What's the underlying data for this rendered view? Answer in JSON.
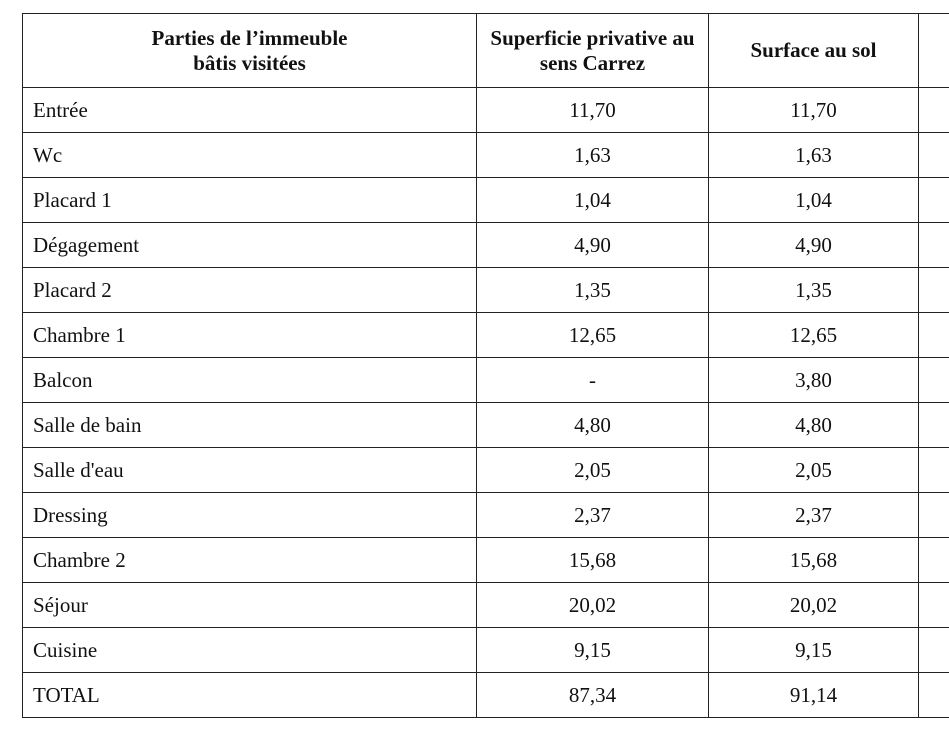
{
  "table": {
    "header": [
      "Parties de l’immeuble bâtis visitées",
      "Superficie privative au sens Carrez",
      "Surface au sol"
    ],
    "rows": [
      [
        "Entrée",
        "11,70",
        "11,70"
      ],
      [
        "Wc",
        "1,63",
        "1,63"
      ],
      [
        "Placard 1",
        "1,04",
        "1,04"
      ],
      [
        "Dégagement",
        "4,90",
        "4,90"
      ],
      [
        "Placard 2",
        "1,35",
        "1,35"
      ],
      [
        "Chambre 1",
        "12,65",
        "12,65"
      ],
      [
        "Balcon",
        "-",
        "3,80"
      ],
      [
        "Salle de bain",
        "4,80",
        "4,80"
      ],
      [
        "Salle d'eau",
        "2,05",
        "2,05"
      ],
      [
        "Dressing",
        "2,37",
        "2,37"
      ],
      [
        "Chambre 2",
        "15,68",
        "15,68"
      ],
      [
        "Séjour",
        "20,02",
        "20,02"
      ],
      [
        "Cuisine",
        "9,15",
        "9,15"
      ],
      [
        "TOTAL",
        "87,34",
        "91,14"
      ]
    ]
  }
}
